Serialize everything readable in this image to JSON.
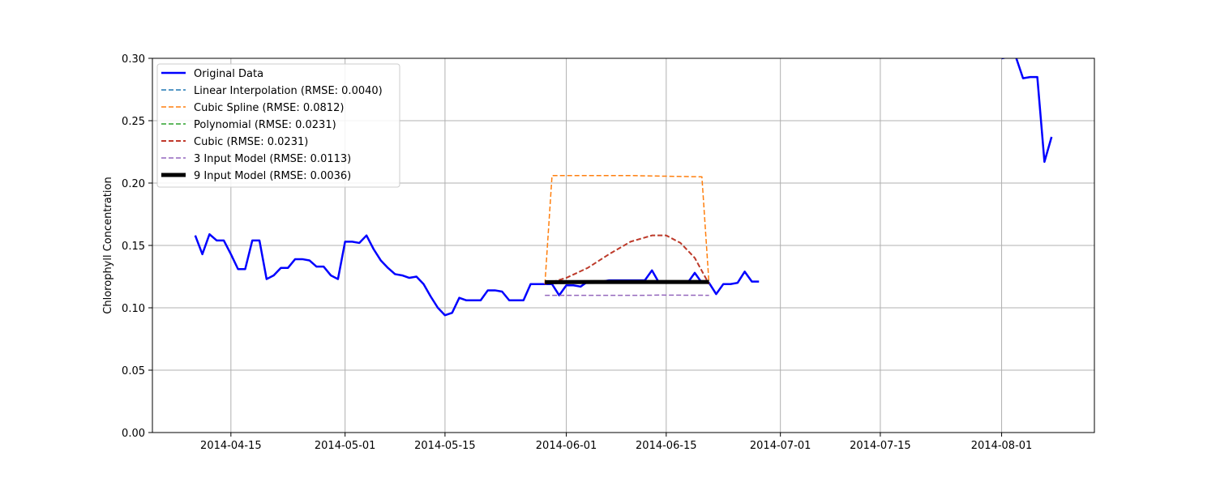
{
  "chart_data": {
    "type": "line",
    "title": "",
    "xlabel": "",
    "ylabel": "Chlorophyll Concentration",
    "xlim": [
      "2014-04-04",
      "2014-08-14"
    ],
    "ylim": [
      0,
      0.3
    ],
    "xticks": [
      "2014-04-15",
      "2014-05-01",
      "2014-05-15",
      "2014-06-01",
      "2014-06-15",
      "2014-07-01",
      "2014-07-15",
      "2014-08-01"
    ],
    "yticks": [
      0.0,
      0.05,
      0.1,
      0.15,
      0.2,
      0.25,
      0.3
    ],
    "ytick_labels": [
      "0.00",
      "0.05",
      "0.10",
      "0.15",
      "0.20",
      "0.25",
      "0.30"
    ],
    "grid": true,
    "legend_position": "upper-left",
    "series": [
      {
        "name": "Original Data",
        "color": "#0000ff",
        "style": "solid",
        "width": 2.5,
        "segments": [
          [
            [
              "2014-04-10",
              0.158
            ],
            [
              "2014-04-11",
              0.143
            ],
            [
              "2014-04-12",
              0.159
            ],
            [
              "2014-04-13",
              0.154
            ],
            [
              "2014-04-14",
              0.154
            ],
            [
              "2014-04-15",
              0.143
            ],
            [
              "2014-04-16",
              0.131
            ],
            [
              "2014-04-17",
              0.131
            ],
            [
              "2014-04-18",
              0.154
            ],
            [
              "2014-04-19",
              0.154
            ],
            [
              "2014-04-20",
              0.123
            ],
            [
              "2014-04-21",
              0.126
            ],
            [
              "2014-04-22",
              0.132
            ],
            [
              "2014-04-23",
              0.132
            ],
            [
              "2014-04-24",
              0.139
            ],
            [
              "2014-04-25",
              0.139
            ],
            [
              "2014-04-26",
              0.138
            ],
            [
              "2014-04-27",
              0.133
            ],
            [
              "2014-04-28",
              0.133
            ],
            [
              "2014-04-29",
              0.126
            ],
            [
              "2014-04-30",
              0.123
            ],
            [
              "2014-05-01",
              0.153
            ],
            [
              "2014-05-02",
              0.153
            ],
            [
              "2014-05-03",
              0.152
            ],
            [
              "2014-05-04",
              0.158
            ],
            [
              "2014-05-05",
              0.147
            ],
            [
              "2014-05-06",
              0.138
            ],
            [
              "2014-05-07",
              0.132
            ],
            [
              "2014-05-08",
              0.127
            ],
            [
              "2014-05-09",
              0.126
            ],
            [
              "2014-05-10",
              0.124
            ],
            [
              "2014-05-11",
              0.125
            ],
            [
              "2014-05-12",
              0.119
            ],
            [
              "2014-05-13",
              0.109
            ],
            [
              "2014-05-14",
              0.1
            ],
            [
              "2014-05-15",
              0.094
            ],
            [
              "2014-05-16",
              0.096
            ],
            [
              "2014-05-17",
              0.108
            ],
            [
              "2014-05-18",
              0.106
            ],
            [
              "2014-05-19",
              0.106
            ],
            [
              "2014-05-20",
              0.106
            ],
            [
              "2014-05-21",
              0.114
            ],
            [
              "2014-05-22",
              0.114
            ],
            [
              "2014-05-23",
              0.113
            ],
            [
              "2014-05-24",
              0.106
            ],
            [
              "2014-05-25",
              0.106
            ],
            [
              "2014-05-26",
              0.106
            ],
            [
              "2014-05-27",
              0.119
            ],
            [
              "2014-05-28",
              0.119
            ],
            [
              "2014-05-29",
              0.119
            ],
            [
              "2014-05-30",
              0.119
            ],
            [
              "2014-05-31",
              0.11
            ],
            [
              "2014-06-01",
              0.118
            ],
            [
              "2014-06-02",
              0.118
            ],
            [
              "2014-06-03",
              0.117
            ],
            [
              "2014-06-04",
              0.121
            ],
            [
              "2014-06-05",
              0.121
            ],
            [
              "2014-06-06",
              0.121
            ],
            [
              "2014-06-07",
              0.122
            ],
            [
              "2014-06-08",
              0.122
            ],
            [
              "2014-06-09",
              0.122
            ],
            [
              "2014-06-10",
              0.122
            ],
            [
              "2014-06-11",
              0.122
            ],
            [
              "2014-06-12",
              0.122
            ],
            [
              "2014-06-13",
              0.13
            ],
            [
              "2014-06-14",
              0.12
            ],
            [
              "2014-06-15",
              0.12
            ],
            [
              "2014-06-16",
              0.12
            ],
            [
              "2014-06-17",
              0.12
            ],
            [
              "2014-06-18",
              0.12
            ],
            [
              "2014-06-19",
              0.128
            ],
            [
              "2014-06-20",
              0.12
            ],
            [
              "2014-06-21",
              0.12
            ],
            [
              "2014-06-22",
              0.111
            ],
            [
              "2014-06-23",
              0.119
            ],
            [
              "2014-06-24",
              0.119
            ],
            [
              "2014-06-25",
              0.12
            ],
            [
              "2014-06-26",
              0.129
            ],
            [
              "2014-06-27",
              0.121
            ],
            [
              "2014-06-28",
              0.121
            ]
          ],
          [
            [
              "2014-08-01",
              0.3
            ],
            [
              "2014-08-02",
              0.301
            ],
            [
              "2014-08-03",
              0.301
            ],
            [
              "2014-08-04",
              0.284
            ],
            [
              "2014-08-05",
              0.285
            ],
            [
              "2014-08-06",
              0.285
            ],
            [
              "2014-08-07",
              0.217
            ],
            [
              "2014-08-08",
              0.237
            ]
          ]
        ]
      },
      {
        "name": "Linear Interpolation (RMSE: 0.0040)",
        "color": "#1f77b4",
        "style": "dashed",
        "width": 1.5,
        "points": [
          [
            "2014-05-29",
            0.1195
          ],
          [
            "2014-06-05",
            0.1197
          ],
          [
            "2014-06-12",
            0.1198
          ],
          [
            "2014-06-21",
            0.12
          ]
        ]
      },
      {
        "name": "Cubic Spline (RMSE: 0.0812)",
        "color": "#ff7f0e",
        "style": "dashed",
        "width": 1.5,
        "points": [
          [
            "2014-05-29",
            0.119
          ],
          [
            "2014-05-30",
            0.206
          ],
          [
            "2014-06-10",
            0.206
          ],
          [
            "2014-06-20",
            0.205
          ],
          [
            "2014-06-21",
            0.119
          ]
        ]
      },
      {
        "name": "Polynomial (RMSE: 0.0231)",
        "color": "#2ca02c",
        "style": "dashed",
        "width": 1.5,
        "points": [
          [
            "2014-05-29",
            0.119
          ],
          [
            "2014-06-01",
            0.124
          ],
          [
            "2014-06-04",
            0.132
          ],
          [
            "2014-06-07",
            0.143
          ],
          [
            "2014-06-10",
            0.153
          ],
          [
            "2014-06-13",
            0.158
          ],
          [
            "2014-06-15",
            0.158
          ],
          [
            "2014-06-17",
            0.152
          ],
          [
            "2014-06-19",
            0.14
          ],
          [
            "2014-06-21",
            0.119
          ]
        ]
      },
      {
        "name": "Cubic (RMSE: 0.0231)",
        "color": "#c0392b",
        "style": "dashed",
        "width": 2,
        "points": [
          [
            "2014-05-29",
            0.119
          ],
          [
            "2014-06-01",
            0.124
          ],
          [
            "2014-06-04",
            0.132
          ],
          [
            "2014-06-07",
            0.143
          ],
          [
            "2014-06-10",
            0.153
          ],
          [
            "2014-06-13",
            0.158
          ],
          [
            "2014-06-15",
            0.158
          ],
          [
            "2014-06-17",
            0.152
          ],
          [
            "2014-06-19",
            0.14
          ],
          [
            "2014-06-21",
            0.119
          ]
        ]
      },
      {
        "name": "3 Input Model (RMSE: 0.0113)",
        "color": "#9467bd",
        "style": "dashed",
        "width": 1.5,
        "points": [
          [
            "2014-05-29",
            0.11
          ],
          [
            "2014-06-03",
            0.11
          ],
          [
            "2014-06-06",
            0.11
          ],
          [
            "2014-06-12",
            0.11
          ],
          [
            "2014-06-14",
            0.1102
          ],
          [
            "2014-06-21",
            0.11
          ]
        ]
      },
      {
        "name": "9 Input Model (RMSE: 0.0036)",
        "color": "#000000",
        "style": "solid",
        "width": 5,
        "points": [
          [
            "2014-05-29",
            0.1205
          ],
          [
            "2014-06-05",
            0.1207
          ],
          [
            "2014-06-12",
            0.1207
          ],
          [
            "2014-06-21",
            0.1207
          ]
        ]
      }
    ]
  }
}
